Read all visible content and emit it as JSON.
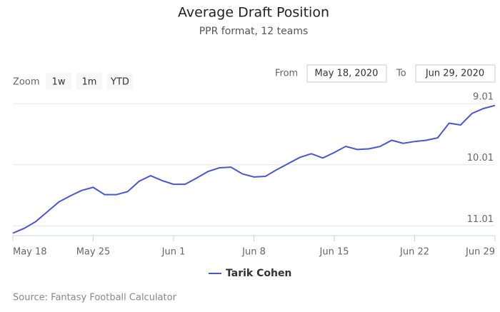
{
  "chart_data": {
    "type": "line",
    "title": "Average Draft Position",
    "subtitle": "PPR format, 12 teams",
    "zoom": {
      "label": "Zoom",
      "buttons": [
        "1w",
        "1m",
        "YTD"
      ]
    },
    "date_range": {
      "from_label": "From",
      "from": "May 18, 2020",
      "to_label": "To",
      "to": "Jun 29, 2020"
    },
    "x": [
      "May 18",
      null,
      null,
      null,
      null,
      null,
      null,
      "May 25",
      null,
      null,
      null,
      null,
      null,
      null,
      "Jun 1",
      null,
      null,
      null,
      null,
      null,
      null,
      "Jun 8",
      null,
      null,
      null,
      null,
      null,
      null,
      "Jun 15",
      null,
      null,
      null,
      null,
      null,
      null,
      "Jun 22",
      null,
      null,
      null,
      null,
      null,
      null,
      "Jun 29"
    ],
    "series": [
      {
        "name": "Tarik Cohen",
        "color": "#4a55d6",
        "values": [
          11.13,
          11.05,
          10.94,
          10.78,
          10.62,
          10.52,
          10.43,
          10.38,
          10.5,
          10.5,
          10.45,
          10.28,
          10.19,
          10.27,
          10.33,
          10.33,
          10.23,
          10.12,
          10.06,
          10.05,
          10.16,
          10.21,
          10.2,
          10.09,
          9.99,
          9.89,
          9.83,
          9.9,
          9.81,
          9.71,
          9.76,
          9.75,
          9.71,
          9.61,
          9.66,
          9.63,
          9.61,
          9.57,
          9.33,
          9.36,
          9.17,
          9.09,
          9.04
        ]
      }
    ],
    "ylim": [
      8.95,
      11.17
    ],
    "reversed": true,
    "yticks": [
      9.01,
      10.01,
      11.01
    ],
    "grid": true,
    "credits": "Source: Fantasy Football Calculator"
  }
}
